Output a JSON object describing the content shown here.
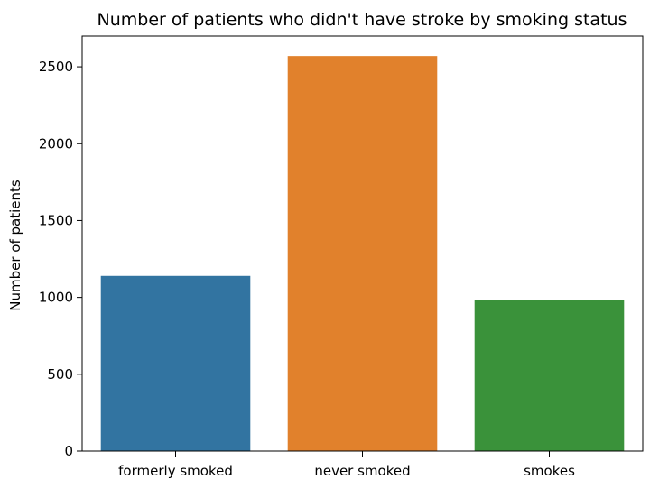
{
  "chart_data": {
    "type": "bar",
    "title": "Number of patients who didn't have stroke by smoking status",
    "xlabel": "",
    "ylabel": "Number of patients",
    "categories": [
      "formerly smoked",
      "never smoked",
      "smokes"
    ],
    "values": [
      1140,
      2570,
      985
    ],
    "colors": [
      "#3274a1",
      "#e1812c",
      "#3a923a"
    ],
    "ylim": [
      0,
      2700
    ],
    "yticks": [
      0,
      500,
      1000,
      1500,
      2000,
      2500
    ],
    "grid": false,
    "legend": "none"
  }
}
